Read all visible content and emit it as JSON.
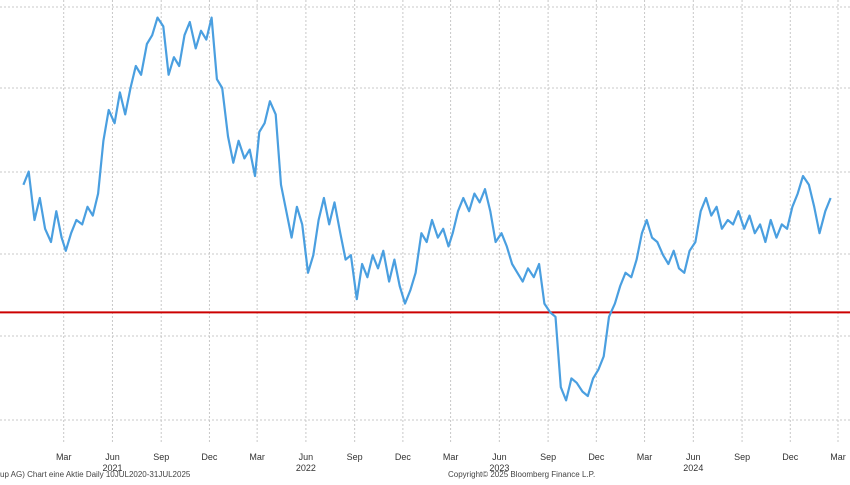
{
  "chart_data": {
    "type": "line",
    "title": "",
    "xlabel": "",
    "ylabel": "",
    "grid": true,
    "x_ticks": [
      {
        "label": "Mar",
        "date": "2021-03-01"
      },
      {
        "label": "Jun",
        "date": "2021-06-01"
      },
      {
        "label": "Sep",
        "date": "2021-09-01"
      },
      {
        "label": "Dec",
        "date": "2021-12-01"
      },
      {
        "label": "Mar",
        "date": "2022-03-01"
      },
      {
        "label": "Jun",
        "date": "2022-06-01"
      },
      {
        "label": "Sep",
        "date": "2022-09-01"
      },
      {
        "label": "Dec",
        "date": "2022-12-01"
      },
      {
        "label": "Mar",
        "date": "2023-03-01"
      },
      {
        "label": "Jun",
        "date": "2023-06-01"
      },
      {
        "label": "Sep",
        "date": "2023-09-01"
      },
      {
        "label": "Dec",
        "date": "2023-12-01"
      },
      {
        "label": "Mar",
        "date": "2024-03-01"
      },
      {
        "label": "Jun",
        "date": "2024-06-01"
      },
      {
        "label": "Sep",
        "date": "2024-09-01"
      },
      {
        "label": "Dec",
        "date": "2024-12-01"
      },
      {
        "label": "Mar",
        "date": "2025-03-01"
      }
    ],
    "year_labels": [
      {
        "label": "2021",
        "date": "2021-06-01"
      },
      {
        "label": "2022",
        "date": "2022-06-01"
      },
      {
        "label": "2023",
        "date": "2023-06-01"
      },
      {
        "label": "2024",
        "date": "2024-06-01"
      }
    ],
    "ylim": [
      0,
      100
    ],
    "reference_line": {
      "y": 29,
      "color": "#cc0000"
    },
    "series": [
      {
        "color": "#4a9fe0",
        "points": [
          [
            "2020-12-15",
            58
          ],
          [
            "2020-12-25",
            61
          ],
          [
            "2021-01-05",
            50
          ],
          [
            "2021-01-15",
            55
          ],
          [
            "2021-01-25",
            48
          ],
          [
            "2021-02-05",
            45
          ],
          [
            "2021-02-15",
            52
          ],
          [
            "2021-02-25",
            46
          ],
          [
            "2021-03-05",
            43
          ],
          [
            "2021-03-15",
            47
          ],
          [
            "2021-03-25",
            50
          ],
          [
            "2021-04-05",
            49
          ],
          [
            "2021-04-15",
            53
          ],
          [
            "2021-04-25",
            51
          ],
          [
            "2021-05-05",
            56
          ],
          [
            "2021-05-15",
            68
          ],
          [
            "2021-05-25",
            75
          ],
          [
            "2021-06-05",
            72
          ],
          [
            "2021-06-15",
            79
          ],
          [
            "2021-06-25",
            74
          ],
          [
            "2021-07-05",
            80
          ],
          [
            "2021-07-15",
            85
          ],
          [
            "2021-07-25",
            83
          ],
          [
            "2021-08-05",
            90
          ],
          [
            "2021-08-15",
            92
          ],
          [
            "2021-08-25",
            96
          ],
          [
            "2021-09-05",
            94
          ],
          [
            "2021-09-15",
            83
          ],
          [
            "2021-09-25",
            87
          ],
          [
            "2021-10-05",
            85
          ],
          [
            "2021-10-15",
            92
          ],
          [
            "2021-10-25",
            95
          ],
          [
            "2021-11-05",
            89
          ],
          [
            "2021-11-15",
            93
          ],
          [
            "2021-11-25",
            91
          ],
          [
            "2021-12-05",
            96
          ],
          [
            "2021-12-15",
            82
          ],
          [
            "2021-12-25",
            80
          ],
          [
            "2022-01-05",
            69
          ],
          [
            "2022-01-15",
            63
          ],
          [
            "2022-01-25",
            68
          ],
          [
            "2022-02-05",
            64
          ],
          [
            "2022-02-15",
            66
          ],
          [
            "2022-02-25",
            60
          ],
          [
            "2022-03-05",
            70
          ],
          [
            "2022-03-15",
            72
          ],
          [
            "2022-03-25",
            77
          ],
          [
            "2022-04-05",
            74
          ],
          [
            "2022-04-15",
            58
          ],
          [
            "2022-04-25",
            52
          ],
          [
            "2022-05-05",
            46
          ],
          [
            "2022-05-15",
            53
          ],
          [
            "2022-05-25",
            49
          ],
          [
            "2022-06-05",
            38
          ],
          [
            "2022-06-15",
            42
          ],
          [
            "2022-06-25",
            50
          ],
          [
            "2022-07-05",
            55
          ],
          [
            "2022-07-15",
            49
          ],
          [
            "2022-07-25",
            54
          ],
          [
            "2022-08-05",
            47
          ],
          [
            "2022-08-15",
            41
          ],
          [
            "2022-08-25",
            42
          ],
          [
            "2022-09-05",
            32
          ],
          [
            "2022-09-15",
            40
          ],
          [
            "2022-09-25",
            37
          ],
          [
            "2022-10-05",
            42
          ],
          [
            "2022-10-15",
            39
          ],
          [
            "2022-10-25",
            43
          ],
          [
            "2022-11-05",
            36
          ],
          [
            "2022-11-15",
            41
          ],
          [
            "2022-11-25",
            35
          ],
          [
            "2022-12-05",
            31
          ],
          [
            "2022-12-15",
            34
          ],
          [
            "2022-12-25",
            38
          ],
          [
            "2023-01-05",
            47
          ],
          [
            "2023-01-15",
            45
          ],
          [
            "2023-01-25",
            50
          ],
          [
            "2023-02-05",
            46
          ],
          [
            "2023-02-15",
            48
          ],
          [
            "2023-02-25",
            44
          ],
          [
            "2023-03-05",
            47
          ],
          [
            "2023-03-15",
            52
          ],
          [
            "2023-03-25",
            55
          ],
          [
            "2023-04-05",
            52
          ],
          [
            "2023-04-15",
            56
          ],
          [
            "2023-04-25",
            54
          ],
          [
            "2023-05-05",
            57
          ],
          [
            "2023-05-15",
            52
          ],
          [
            "2023-05-25",
            45
          ],
          [
            "2023-06-05",
            47
          ],
          [
            "2023-06-15",
            44
          ],
          [
            "2023-06-25",
            40
          ],
          [
            "2023-07-05",
            38
          ],
          [
            "2023-07-15",
            36
          ],
          [
            "2023-07-25",
            39
          ],
          [
            "2023-08-05",
            37
          ],
          [
            "2023-08-15",
            40
          ],
          [
            "2023-08-25",
            31
          ],
          [
            "2023-09-05",
            29
          ],
          [
            "2023-09-15",
            28
          ],
          [
            "2023-09-25",
            12
          ],
          [
            "2023-10-05",
            9
          ],
          [
            "2023-10-15",
            14
          ],
          [
            "2023-10-25",
            13
          ],
          [
            "2023-11-05",
            11
          ],
          [
            "2023-11-15",
            10
          ],
          [
            "2023-11-25",
            14
          ],
          [
            "2023-12-05",
            16
          ],
          [
            "2023-12-15",
            19
          ],
          [
            "2023-12-25",
            28
          ],
          [
            "2024-01-05",
            31
          ],
          [
            "2024-01-15",
            35
          ],
          [
            "2024-01-25",
            38
          ],
          [
            "2024-02-05",
            37
          ],
          [
            "2024-02-15",
            41
          ],
          [
            "2024-02-25",
            47
          ],
          [
            "2024-03-05",
            50
          ],
          [
            "2024-03-15",
            46
          ],
          [
            "2024-03-25",
            45
          ],
          [
            "2024-04-05",
            42
          ],
          [
            "2024-04-15",
            40
          ],
          [
            "2024-04-25",
            43
          ],
          [
            "2024-05-05",
            39
          ],
          [
            "2024-05-15",
            38
          ],
          [
            "2024-05-25",
            43
          ],
          [
            "2024-06-05",
            45
          ],
          [
            "2024-06-15",
            52
          ],
          [
            "2024-06-25",
            55
          ],
          [
            "2024-07-05",
            51
          ],
          [
            "2024-07-15",
            53
          ],
          [
            "2024-07-25",
            48
          ],
          [
            "2024-08-05",
            50
          ],
          [
            "2024-08-15",
            49
          ],
          [
            "2024-08-25",
            52
          ],
          [
            "2024-09-05",
            48
          ],
          [
            "2024-09-15",
            51
          ],
          [
            "2024-09-25",
            47
          ],
          [
            "2024-10-05",
            49
          ],
          [
            "2024-10-15",
            45
          ],
          [
            "2024-10-25",
            50
          ],
          [
            "2024-11-05",
            46
          ],
          [
            "2024-11-15",
            49
          ],
          [
            "2024-11-25",
            48
          ],
          [
            "2024-12-05",
            53
          ],
          [
            "2024-12-15",
            56
          ],
          [
            "2024-12-25",
            60
          ],
          [
            "2025-01-05",
            58
          ],
          [
            "2025-01-15",
            53
          ],
          [
            "2025-01-25",
            47
          ],
          [
            "2025-02-05",
            52
          ],
          [
            "2025-02-15",
            55
          ]
        ]
      }
    ],
    "footer_left": "up AG) Chart eine Aktie  Daily 10JUL2020-31JUL2025",
    "footer_right": "Copyright© 2025 Bloomberg Finance L.P."
  }
}
